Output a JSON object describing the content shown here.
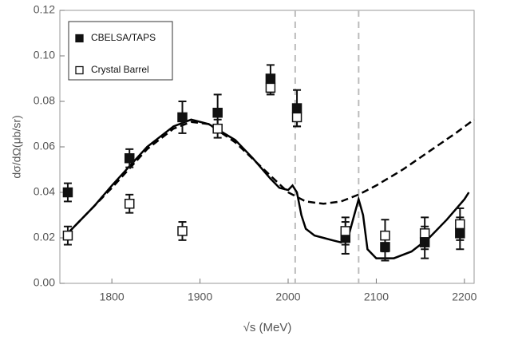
{
  "chart_data": {
    "type": "scatter",
    "x_label": "√s (MeV)",
    "y_label": "dσ/dΩ(μb/sr)",
    "xlim": [
      1741,
      2211
    ],
    "ylim": [
      0,
      0.12
    ],
    "xticks": [
      1800,
      1900,
      2000,
      2100,
      2200
    ],
    "yticks": [
      {
        "value": 0,
        "label": "0.00"
      },
      {
        "value": 0.02,
        "label": "0.02"
      },
      {
        "value": 0.04,
        "label": "0.04"
      },
      {
        "value": 0.06,
        "label": "0.06"
      },
      {
        "value": 0.08,
        "label": "0.08"
      },
      {
        "value": 0.1,
        "label": "0.10"
      },
      {
        "value": 0.12,
        "label": "0.12"
      }
    ],
    "vlines": [
      2008,
      2080
    ],
    "legend": "top-left",
    "series": [
      {
        "name": "CBELSA/TAPS",
        "marker": "filled",
        "color": "#111111",
        "x": [
          1750,
          1820,
          1880,
          1920,
          1980,
          2010,
          2065,
          2110,
          2155,
          2195
        ],
        "values": [
          0.04,
          0.055,
          0.073,
          0.075,
          0.09,
          0.077,
          0.02,
          0.016,
          0.018,
          0.022
        ],
        "errors": [
          0.004,
          0.004,
          0.007,
          0.008,
          0.006,
          0.008,
          0.007,
          0.006,
          0.007,
          0.007
        ]
      },
      {
        "name": "Crystal Barrel",
        "marker": "open",
        "color": "#111111",
        "x": [
          1750,
          1820,
          1880,
          1920,
          1980,
          2010,
          2065,
          2110,
          2155,
          2195
        ],
        "values": [
          0.021,
          0.035,
          0.023,
          0.068,
          0.086,
          0.073,
          0.023,
          0.021,
          0.022,
          0.026
        ],
        "errors": [
          0.004,
          0.004,
          0.004,
          0.004,
          0.003,
          0.004,
          0.006,
          0.007,
          0.007,
          0.007
        ]
      }
    ],
    "curves": [
      {
        "style": "solid",
        "color": "#000000",
        "x": [
          1750,
          1780,
          1800,
          1840,
          1870,
          1890,
          1910,
          1940,
          1960,
          1980,
          1990,
          2000,
          2005,
          2010,
          2015,
          2020,
          2030,
          2040,
          2050,
          2060,
          2068,
          2075,
          2080,
          2085,
          2090,
          2100,
          2120,
          2140,
          2160,
          2180,
          2200,
          2205
        ],
        "values": [
          0.022,
          0.034,
          0.043,
          0.06,
          0.069,
          0.072,
          0.07,
          0.063,
          0.055,
          0.046,
          0.042,
          0.041,
          0.043,
          0.04,
          0.03,
          0.024,
          0.021,
          0.02,
          0.019,
          0.018,
          0.02,
          0.03,
          0.037,
          0.03,
          0.015,
          0.011,
          0.011,
          0.014,
          0.02,
          0.028,
          0.037,
          0.04
        ]
      },
      {
        "style": "dashed",
        "color": "#000000",
        "x": [
          1750,
          1800,
          1840,
          1870,
          1890,
          1910,
          1940,
          1970,
          2000,
          2020,
          2040,
          2060,
          2080,
          2100,
          2130,
          2160,
          2190,
          2211
        ],
        "values": [
          0.022,
          0.042,
          0.059,
          0.068,
          0.071,
          0.07,
          0.062,
          0.051,
          0.04,
          0.036,
          0.035,
          0.036,
          0.039,
          0.043,
          0.05,
          0.058,
          0.066,
          0.072
        ]
      }
    ]
  }
}
